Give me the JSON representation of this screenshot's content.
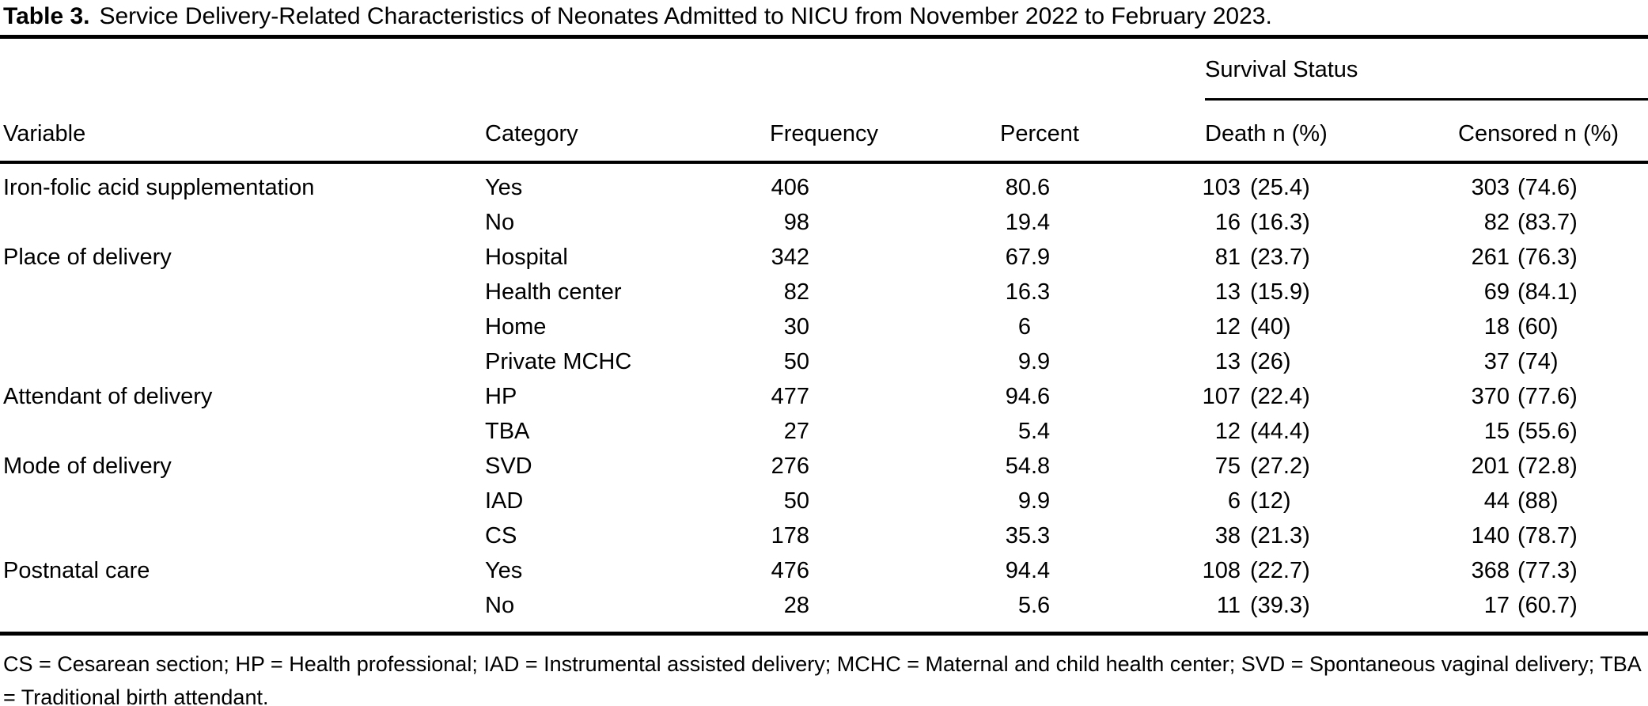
{
  "table": {
    "title_label": "Table 3.",
    "title_text": "Service Delivery-Related Characteristics of Neonates Admitted to NICU from November 2022 to February 2023.",
    "spanner": "Survival Status",
    "columns": [
      "Variable",
      "Category",
      "Frequency",
      "Percent",
      "Death n (%)",
      "Censored n (%)"
    ],
    "rows": [
      {
        "variable": "Iron-folic acid supplementation",
        "category": "Yes",
        "frequency": "406",
        "percent": "80.6",
        "death": "103 (25.4)",
        "censored": "303 (74.6)"
      },
      {
        "variable": "",
        "category": "No",
        "frequency": "98",
        "percent": "19.4",
        "death": "16 (16.3)",
        "censored": "82 (83.7)"
      },
      {
        "variable": "Place of delivery",
        "category": "Hospital",
        "frequency": "342",
        "percent": "67.9",
        "death": "81 (23.7)",
        "censored": "261 (76.3)"
      },
      {
        "variable": "",
        "category": "Health center",
        "frequency": "82",
        "percent": "16.3",
        "death": "13 (15.9)",
        "censored": "69 (84.1)"
      },
      {
        "variable": "",
        "category": "Home",
        "frequency": "30",
        "percent": "6",
        "death": "12 (40)",
        "censored": "18 (60)"
      },
      {
        "variable": "",
        "category": "Private MCHC",
        "frequency": "50",
        "percent": "9.9",
        "death": "13 (26)",
        "censored": "37 (74)"
      },
      {
        "variable": "Attendant of delivery",
        "category": "HP",
        "frequency": "477",
        "percent": "94.6",
        "death": "107 (22.4)",
        "censored": "370 (77.6)"
      },
      {
        "variable": "",
        "category": "TBA",
        "frequency": "27",
        "percent": "5.4",
        "death": "12 (44.4)",
        "censored": "15 (55.6)"
      },
      {
        "variable": "Mode of delivery",
        "category": "SVD",
        "frequency": "276",
        "percent": "54.8",
        "death": "75 (27.2)",
        "censored": "201 (72.8)"
      },
      {
        "variable": "",
        "category": "IAD",
        "frequency": "50",
        "percent": "9.9",
        "death": "6 (12)",
        "censored": "44 (88)"
      },
      {
        "variable": "",
        "category": "CS",
        "frequency": "178",
        "percent": "35.3",
        "death": "38 (21.3)",
        "censored": "140 (78.7)"
      },
      {
        "variable": "Postnatal care",
        "category": "Yes",
        "frequency": "476",
        "percent": "94.4",
        "death": "108 (22.7)",
        "censored": "368 (77.3)"
      },
      {
        "variable": "",
        "category": "No",
        "frequency": "28",
        "percent": "5.6",
        "death": "11 (39.3)",
        "censored": "17 (60.7)"
      }
    ],
    "footnote": "CS = Cesarean section; HP = Health professional; IAD = Instrumental assisted delivery; MCHC = Maternal and child health center; SVD = Spontaneous vaginal delivery; TBA = Traditional birth attendant.",
    "colors": {
      "text": "#000000",
      "background": "#ffffff",
      "rule": "#000000"
    }
  }
}
